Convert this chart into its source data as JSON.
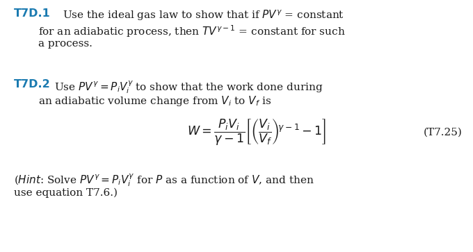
{
  "background_color": "#ffffff",
  "figsize": [
    6.8,
    3.63
  ],
  "dpi": 100,
  "label_color": "#1a7ab0",
  "text_color": "#1a1a1a",
  "fs_label": 11.5,
  "fs_body": 11.0,
  "fs_eq": 12.5,
  "t7d1_label": "T7D.1",
  "t7d1_line1": "Use the ideal gas law to show that if $PV^{\\gamma}$ = constant",
  "t7d1_line2": "for an adiabatic process, then $TV^{\\gamma-1}$ = constant for such",
  "t7d1_line3": "a process.",
  "t7d2_label": "T7D.2",
  "t7d2_line1": "Use $PV^{\\gamma} = P_iV_i^{\\gamma}$ to show that the work done during",
  "t7d2_line2": "an adiabatic volume change from $V_i$ to $V_f$ is",
  "equation": "$W = \\dfrac{P_i V_i}{\\gamma - 1}\\left[\\left(\\dfrac{V_i}{V_f}\\right)^{\\!\\gamma-1} - 1\\right]$",
  "eq_label": "(T7.25)",
  "hint_line1": "($\\it{Hint}$: Solve $PV^{\\gamma} = P_iV_i^{\\gamma}$ for $P$ as a function of $V$, and then",
  "hint_line2": "use equation T7.6.)"
}
